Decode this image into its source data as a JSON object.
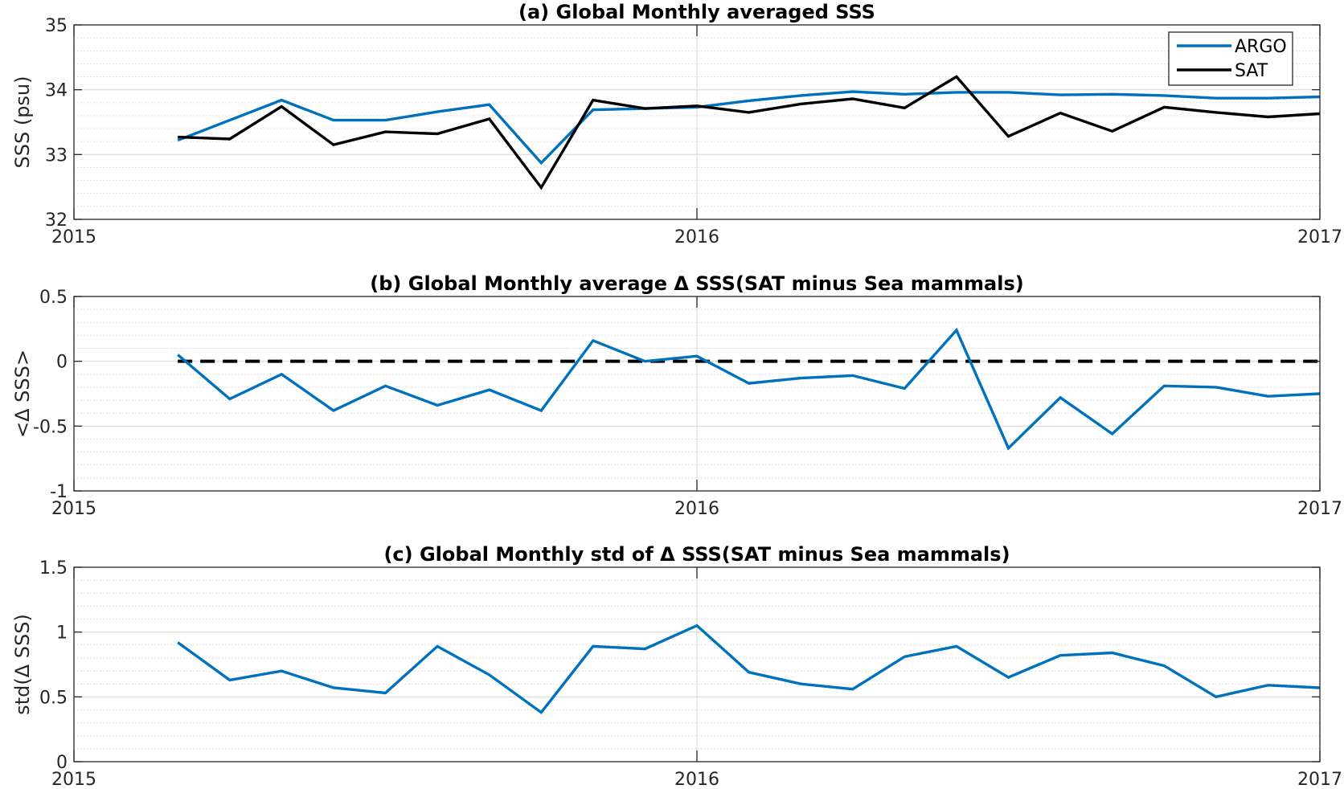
{
  "chart_data": [
    {
      "type": "line",
      "title": "(a) Global Monthly averaged SSS",
      "xlabel": "",
      "ylabel": "SSS (psu)",
      "xlim": [
        "2015",
        "2017"
      ],
      "ylim": [
        32,
        35
      ],
      "xticks": [
        "2015",
        "2016",
        "2017"
      ],
      "yticks": [
        "32",
        "33",
        "34",
        "35"
      ],
      "grid": true,
      "minor_grid": true,
      "legend": "top-right",
      "x": [
        "2015-03",
        "2015-04",
        "2015-05",
        "2015-06",
        "2015-07",
        "2015-08",
        "2015-09",
        "2015-10",
        "2015-11",
        "2015-12",
        "2016-01",
        "2016-02",
        "2016-03",
        "2016-04",
        "2016-05",
        "2016-06",
        "2016-07",
        "2016-08",
        "2016-09",
        "2016-10",
        "2016-11",
        "2016-12",
        "2017-01"
      ],
      "series": [
        {
          "name": "ARGO",
          "color": "#0072BD",
          "values": [
            33.22,
            33.53,
            33.84,
            33.53,
            33.53,
            33.66,
            33.77,
            32.87,
            33.69,
            33.71,
            33.73,
            33.83,
            33.91,
            33.97,
            33.93,
            33.96,
            33.96,
            33.92,
            33.93,
            33.91,
            33.87,
            33.87,
            33.89
          ]
        },
        {
          "name": "SAT",
          "color": "#000000",
          "values": [
            33.27,
            33.24,
            33.74,
            33.15,
            33.35,
            33.32,
            33.55,
            32.49,
            33.84,
            33.71,
            33.75,
            33.65,
            33.78,
            33.86,
            33.72,
            34.2,
            33.28,
            33.64,
            33.36,
            33.73,
            33.65,
            33.58,
            33.63
          ]
        }
      ]
    },
    {
      "type": "line",
      "title": "(b) Global Monthly average Δ SSS(SAT minus Sea mammals)",
      "xlabel": "",
      "ylabel": "<Δ SSS>",
      "xlim": [
        "2015",
        "2017"
      ],
      "ylim": [
        -1,
        0.5
      ],
      "xticks": [
        "2015",
        "2016",
        "2017"
      ],
      "yticks": [
        "-1",
        "-0.5",
        "0",
        "0.5"
      ],
      "grid": true,
      "minor_grid": true,
      "reference_line": 0,
      "x": [
        "2015-03",
        "2015-04",
        "2015-05",
        "2015-06",
        "2015-07",
        "2015-08",
        "2015-09",
        "2015-10",
        "2015-11",
        "2015-12",
        "2016-01",
        "2016-02",
        "2016-03",
        "2016-04",
        "2016-05",
        "2016-06",
        "2016-07",
        "2016-08",
        "2016-09",
        "2016-10",
        "2016-11",
        "2016-12",
        "2017-01"
      ],
      "series": [
        {
          "color": "#0072BD",
          "values": [
            0.05,
            -0.29,
            -0.1,
            -0.38,
            -0.19,
            -0.34,
            -0.22,
            -0.38,
            0.16,
            0.0,
            0.04,
            -0.17,
            -0.13,
            -0.11,
            -0.21,
            0.24,
            -0.67,
            -0.28,
            -0.56,
            -0.19,
            -0.2,
            -0.27,
            -0.25
          ]
        }
      ]
    },
    {
      "type": "line",
      "title": "(c) Global Monthly std of Δ SSS(SAT minus Sea mammals)",
      "xlabel": "",
      "ylabel": "std(Δ SSS)",
      "xlim": [
        "2015",
        "2017"
      ],
      "ylim": [
        0,
        1.5
      ],
      "xticks": [
        "2015",
        "2016",
        "2017"
      ],
      "yticks": [
        "0",
        "0.5",
        "1",
        "1.5"
      ],
      "grid": true,
      "minor_grid": true,
      "x": [
        "2015-03",
        "2015-04",
        "2015-05",
        "2015-06",
        "2015-07",
        "2015-08",
        "2015-09",
        "2015-10",
        "2015-11",
        "2015-12",
        "2016-01",
        "2016-02",
        "2016-03",
        "2016-04",
        "2016-05",
        "2016-06",
        "2016-07",
        "2016-08",
        "2016-09",
        "2016-10",
        "2016-11",
        "2016-12",
        "2017-01"
      ],
      "series": [
        {
          "color": "#0072BD",
          "values": [
            0.92,
            0.63,
            0.7,
            0.57,
            0.53,
            0.89,
            0.67,
            0.38,
            0.89,
            0.87,
            1.05,
            0.69,
            0.6,
            0.56,
            0.81,
            0.89,
            0.65,
            0.82,
            0.84,
            0.74,
            0.5,
            0.59,
            0.57
          ]
        }
      ]
    }
  ]
}
